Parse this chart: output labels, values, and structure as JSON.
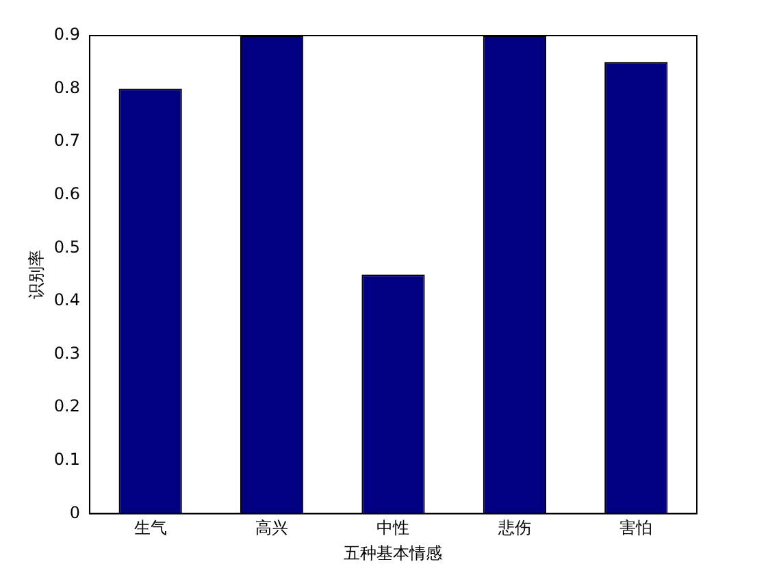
{
  "chart_data": {
    "type": "bar",
    "xlabel": "五种基本情感",
    "ylabel": "识别率",
    "categories": [
      "生气",
      "高兴",
      "中性",
      "悲伤",
      "害怕"
    ],
    "values": [
      0.8,
      0.9,
      0.45,
      0.9,
      0.85
    ],
    "color": "#000080",
    "ylim": [
      0,
      0.9
    ],
    "yticks": [
      0,
      0.1,
      0.2,
      0.3,
      0.4,
      0.5,
      0.6,
      0.7,
      0.8,
      0.9
    ],
    "grid": false,
    "legend": false
  }
}
